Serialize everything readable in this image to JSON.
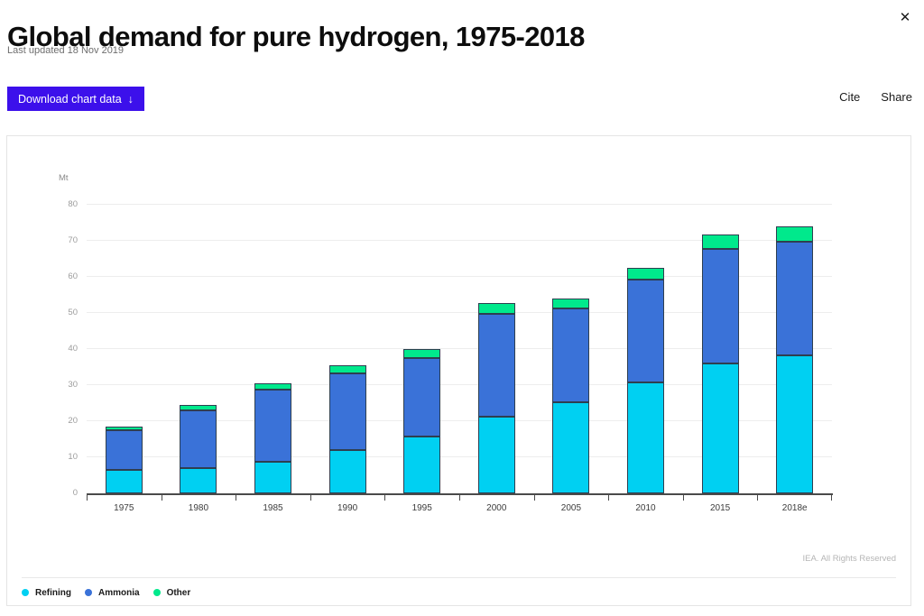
{
  "header": {
    "title": "Global demand for pure hydrogen, 1975-2018",
    "last_updated": "Last updated 18 Nov 2019"
  },
  "toolbar": {
    "download_label": "Download chart data",
    "download_arrow": "↓",
    "cite_label": "Cite",
    "share_label": "Share"
  },
  "icons": {
    "close": "✕"
  },
  "colors": {
    "accent_button": "#3c10eb",
    "refining": "#00d0f2",
    "ammonia": "#3a72d8",
    "other": "#00e98c",
    "bar_border": "#2e3f50",
    "axis": "#4a4a4a",
    "gridline": "#ededed"
  },
  "chart_data": {
    "type": "bar",
    "stacked": true,
    "title": "Global demand for pure hydrogen, 1975-2018",
    "unit": "Mt",
    "categories": [
      "1975",
      "1980",
      "1985",
      "1990",
      "1995",
      "2000",
      "2005",
      "2010",
      "2015",
      "2018e"
    ],
    "series": [
      {
        "name": "Refining",
        "color": "#00d0f2",
        "values": [
          6.5,
          7.0,
          8.7,
          12.0,
          15.8,
          21.3,
          25.3,
          30.8,
          36.1,
          38.2
        ]
      },
      {
        "name": "Ammonia",
        "color": "#3a72d8",
        "values": [
          11.0,
          16.0,
          20.0,
          21.2,
          21.8,
          28.5,
          25.9,
          28.4,
          31.6,
          31.5
        ]
      },
      {
        "name": "Other",
        "color": "#00e98c",
        "values": [
          1.1,
          1.6,
          1.8,
          2.2,
          2.4,
          3.0,
          2.9,
          3.3,
          4.0,
          4.2
        ]
      }
    ],
    "totals": [
      18.6,
      24.6,
      30.5,
      35.4,
      40.0,
      52.8,
      54.1,
      62.5,
      71.7,
      73.9
    ],
    "ylim": [
      0,
      80
    ],
    "ytick_step": 10,
    "grid": true,
    "legend_position": "bottom-left",
    "attribution": "IEA. All Rights Reserved"
  }
}
